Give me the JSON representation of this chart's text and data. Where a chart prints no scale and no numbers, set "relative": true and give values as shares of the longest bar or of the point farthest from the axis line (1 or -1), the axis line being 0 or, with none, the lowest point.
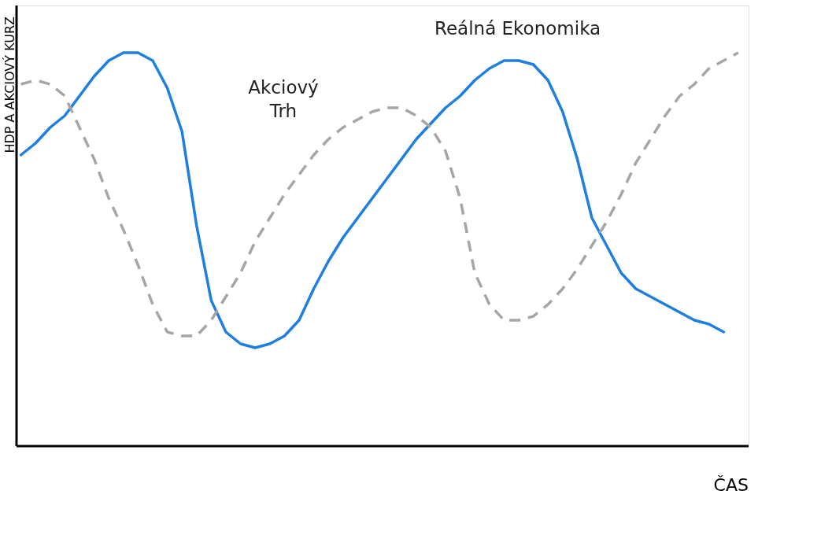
{
  "chart_data": {
    "type": "line",
    "relative": true,
    "xlabel": "ČAS",
    "ylabel": "HDP A AKCIOVÝ KURZ",
    "legend": false,
    "marker": "none",
    "categories": [
      null,
      null,
      null,
      null,
      null,
      null,
      null,
      null,
      null,
      null,
      null,
      null,
      null,
      null,
      null,
      null,
      null,
      null,
      null,
      null,
      null,
      null,
      null,
      null,
      null,
      null,
      null,
      null,
      null,
      null,
      null,
      null,
      null,
      null,
      null,
      null,
      null,
      null,
      null,
      null,
      null,
      null,
      null,
      null,
      null,
      null,
      null,
      null,
      null,
      null
    ],
    "series": [
      {
        "name": "Reálná Ekonomika",
        "color": "#1f7fe0",
        "line_style": "solid",
        "values": [
          0.74,
          0.77,
          0.81,
          0.84,
          0.89,
          0.94,
          0.98,
          1.0,
          1.0,
          0.98,
          0.91,
          0.8,
          0.56,
          0.37,
          0.29,
          0.26,
          0.25,
          0.26,
          0.28,
          0.32,
          0.4,
          0.47,
          0.53,
          0.58,
          0.63,
          0.68,
          0.73,
          0.78,
          0.82,
          0.86,
          0.89,
          0.93,
          0.96,
          0.98,
          0.98,
          0.97,
          0.93,
          0.85,
          0.73,
          0.58,
          0.51,
          0.44,
          0.4,
          0.38,
          0.36,
          0.34,
          0.32,
          0.31,
          0.29,
          null
        ]
      },
      {
        "name": "Akciový Trh",
        "color": "#a6a6a6",
        "line_style": "dashed",
        "values": [
          0.92,
          0.93,
          0.92,
          0.89,
          0.81,
          0.73,
          0.63,
          0.55,
          0.46,
          0.36,
          0.29,
          0.28,
          0.28,
          0.32,
          0.38,
          0.44,
          0.52,
          0.58,
          0.64,
          0.69,
          0.74,
          0.78,
          0.81,
          0.83,
          0.85,
          0.86,
          0.86,
          0.84,
          0.81,
          0.75,
          0.63,
          0.44,
          0.36,
          0.32,
          0.32,
          0.33,
          0.36,
          0.4,
          0.45,
          0.51,
          0.57,
          0.64,
          0.72,
          0.78,
          0.84,
          0.89,
          0.92,
          0.96,
          0.98,
          1.0
        ]
      }
    ]
  }
}
